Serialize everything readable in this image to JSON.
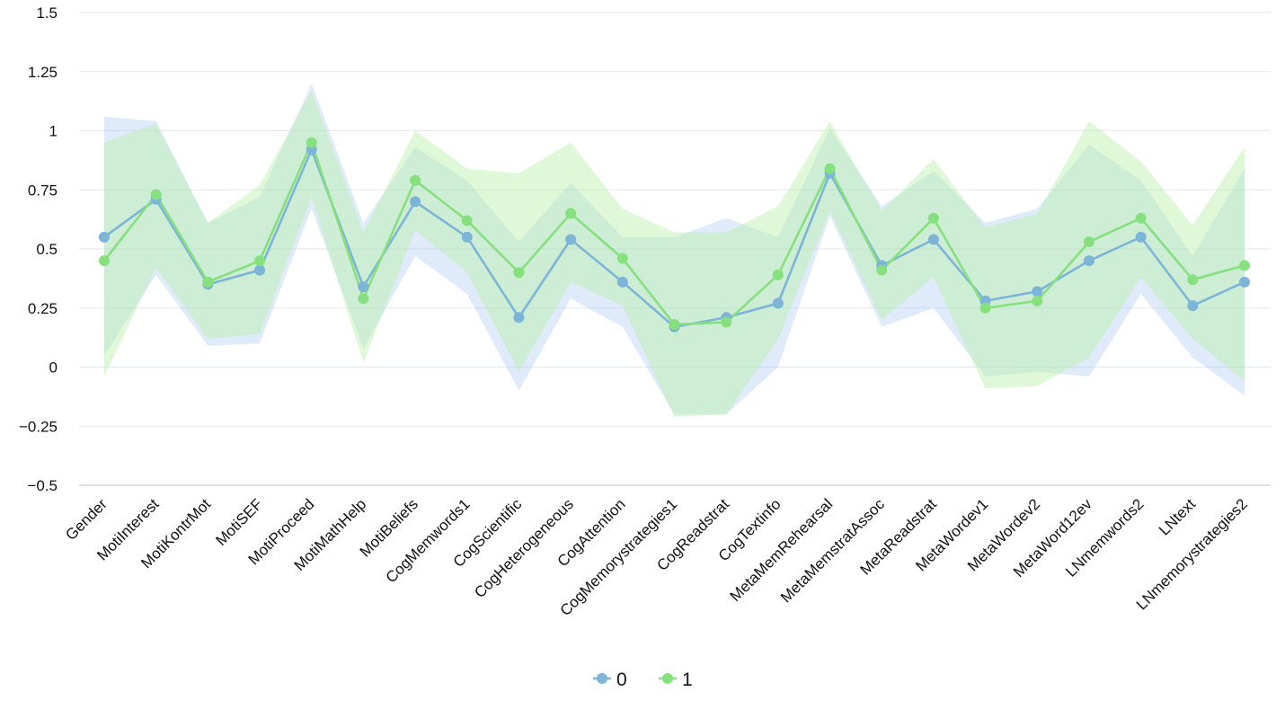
{
  "chart_data": {
    "type": "line",
    "title": "",
    "xlabel": "",
    "ylabel": "",
    "ylim": [
      -0.5,
      1.5
    ],
    "yticks": [
      -0.5,
      -0.25,
      0,
      0.25,
      0.5,
      0.75,
      1,
      1.25,
      1.5
    ],
    "ytick_labels": [
      "−0.5",
      "−0.25",
      "0",
      "0.25",
      "0.5",
      "0.75",
      "1",
      "1.25",
      "1.5"
    ],
    "grid": true,
    "legend_position": "bottom-center",
    "categories": [
      "Gender",
      "MotiInterest",
      "MotiKontrMot",
      "MotiSEF",
      "MotiProceed",
      "MotiMathHelp",
      "MotiBeliefs",
      "CogMemwords1",
      "CogScientific",
      "CogHeterogeneous",
      "CogAttention",
      "CogMemorystrategies1",
      "CogReadstrat",
      "CogTextinfo",
      "MetaMemRehearsal",
      "MetaMemstratAssoc",
      "MetaReadstrat",
      "MetaWordev1",
      "MetaWordev2",
      "MetaWord12ev",
      "LNmemwords2",
      "LNtext",
      "LNmemorystrategies2"
    ],
    "series": [
      {
        "name": "0",
        "color": "#7cb5d8",
        "band_color": "#9cc0ef",
        "values": [
          0.55,
          0.71,
          0.35,
          0.41,
          0.92,
          0.34,
          0.7,
          0.55,
          0.21,
          0.54,
          0.36,
          0.17,
          0.21,
          0.27,
          0.82,
          0.43,
          0.54,
          0.28,
          0.32,
          0.45,
          0.55,
          0.26,
          0.36
        ],
        "lower": [
          0.05,
          0.39,
          0.09,
          0.1,
          0.67,
          0.08,
          0.47,
          0.31,
          -0.1,
          0.29,
          0.17,
          -0.2,
          -0.2,
          0.0,
          0.64,
          0.17,
          0.25,
          -0.04,
          -0.02,
          -0.04,
          0.31,
          0.04,
          -0.12
        ],
        "upper": [
          1.06,
          1.04,
          0.61,
          0.72,
          1.2,
          0.61,
          0.93,
          0.79,
          0.53,
          0.78,
          0.55,
          0.55,
          0.63,
          0.55,
          1.01,
          0.68,
          0.83,
          0.61,
          0.67,
          0.94,
          0.79,
          0.47,
          0.84
        ]
      },
      {
        "name": "1",
        "color": "#86e07e",
        "band_color": "#b9f0a9",
        "values": [
          0.45,
          0.73,
          0.36,
          0.45,
          0.95,
          0.29,
          0.79,
          0.62,
          0.4,
          0.65,
          0.46,
          0.18,
          0.19,
          0.39,
          0.84,
          0.41,
          0.63,
          0.25,
          0.28,
          0.53,
          0.63,
          0.37,
          0.43
        ],
        "lower": [
          -0.04,
          0.42,
          0.12,
          0.14,
          0.72,
          0.02,
          0.58,
          0.4,
          -0.02,
          0.36,
          0.26,
          -0.21,
          -0.2,
          0.12,
          0.66,
          0.2,
          0.38,
          -0.09,
          -0.08,
          0.04,
          0.38,
          0.12,
          -0.06
        ],
        "upper": [
          0.95,
          1.03,
          0.61,
          0.77,
          1.17,
          0.57,
          1.0,
          0.84,
          0.82,
          0.95,
          0.67,
          0.57,
          0.57,
          0.68,
          1.04,
          0.66,
          0.88,
          0.59,
          0.65,
          1.04,
          0.87,
          0.6,
          0.93
        ]
      }
    ]
  }
}
